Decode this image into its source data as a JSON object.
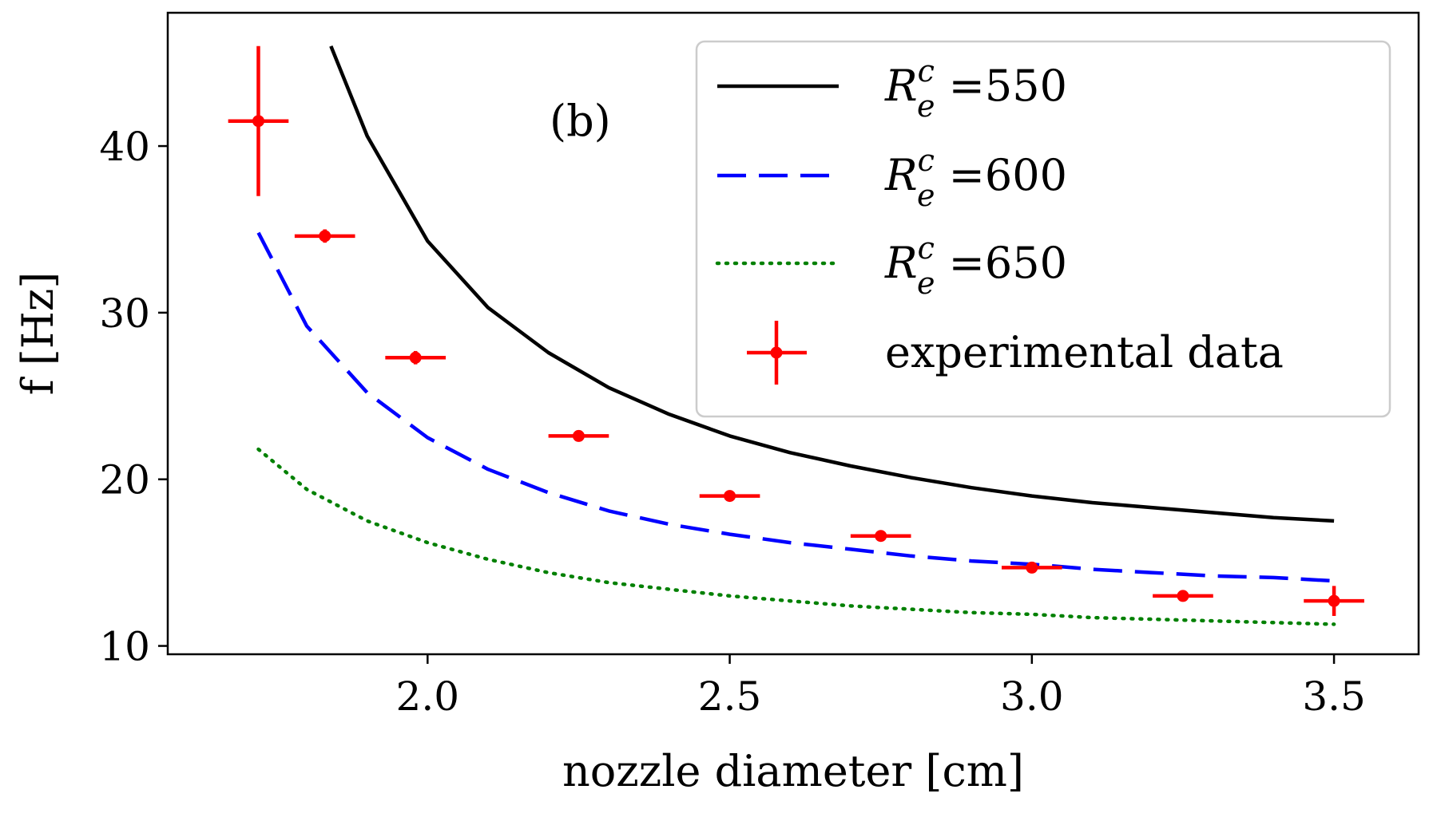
{
  "chart_data": {
    "type": "line",
    "title": "",
    "annotation": "(b)",
    "xlabel": "nozzle diameter [cm]",
    "ylabel": "f [Hz]",
    "xlim": [
      1.57,
      3.64
    ],
    "ylim": [
      9.5,
      48
    ],
    "xticks": [
      2.0,
      2.5,
      3.0,
      3.5
    ],
    "xtick_labels": [
      "2.0",
      "2.5",
      "3.0",
      "3.5"
    ],
    "yticks": [
      10,
      20,
      30,
      40
    ],
    "ytick_labels": [
      "10",
      "20",
      "30",
      "40"
    ],
    "grid": false,
    "legend_position": "top-right",
    "series": [
      {
        "name": "R_e^c =550",
        "legend_sym": "R",
        "legend_sup": "c",
        "legend_sub": "e",
        "legend_rest": " =550",
        "style": "solid",
        "color": "#000000",
        "x": [
          1.84,
          1.9,
          2.0,
          2.1,
          2.2,
          2.3,
          2.4,
          2.5,
          2.6,
          2.7,
          2.8,
          2.9,
          3.0,
          3.1,
          3.2,
          3.3,
          3.4,
          3.5
        ],
        "y": [
          46.0,
          40.6,
          34.3,
          30.3,
          27.6,
          25.5,
          23.9,
          22.6,
          21.6,
          20.8,
          20.1,
          19.5,
          19.0,
          18.6,
          18.3,
          18.0,
          17.7,
          17.5
        ]
      },
      {
        "name": "R_e^c =600",
        "legend_sym": "R",
        "legend_sup": "c",
        "legend_sub": "e",
        "legend_rest": " =600",
        "style": "dashed",
        "color": "#0000ff",
        "x": [
          1.72,
          1.8,
          1.9,
          2.0,
          2.1,
          2.2,
          2.3,
          2.4,
          2.5,
          2.6,
          2.7,
          2.8,
          2.9,
          3.0,
          3.1,
          3.2,
          3.3,
          3.4,
          3.5
        ],
        "y": [
          34.8,
          29.2,
          25.2,
          22.5,
          20.6,
          19.2,
          18.1,
          17.3,
          16.7,
          16.2,
          15.8,
          15.4,
          15.1,
          14.9,
          14.6,
          14.4,
          14.2,
          14.1,
          13.9
        ]
      },
      {
        "name": "R_e^c =650",
        "legend_sym": "R",
        "legend_sup": "c",
        "legend_sub": "e",
        "legend_rest": " =650",
        "style": "dotted",
        "color": "#008000",
        "x": [
          1.72,
          1.8,
          1.9,
          2.0,
          2.1,
          2.2,
          2.3,
          2.4,
          2.5,
          2.6,
          2.7,
          2.8,
          2.9,
          3.0,
          3.1,
          3.2,
          3.3,
          3.4,
          3.5
        ],
        "y": [
          21.8,
          19.4,
          17.5,
          16.2,
          15.2,
          14.4,
          13.8,
          13.4,
          13.0,
          12.7,
          12.4,
          12.2,
          12.0,
          11.9,
          11.7,
          11.6,
          11.5,
          11.4,
          11.3
        ]
      },
      {
        "name": "experimental data",
        "legend_rest": "experimental data",
        "style": "errorbar",
        "color": "#ff0000",
        "points": [
          {
            "x": 1.72,
            "y": 41.5,
            "xerr": 0.05,
            "yerr": 4.5
          },
          {
            "x": 1.83,
            "y": 34.6,
            "xerr": 0.05,
            "yerr": 0.4
          },
          {
            "x": 1.98,
            "y": 27.3,
            "xerr": 0.05,
            "yerr": 0.4
          },
          {
            "x": 2.25,
            "y": 22.6,
            "xerr": 0.05,
            "yerr": 0.2
          },
          {
            "x": 2.5,
            "y": 19.0,
            "xerr": 0.05,
            "yerr": 0.2
          },
          {
            "x": 2.75,
            "y": 16.6,
            "xerr": 0.05,
            "yerr": 0.2
          },
          {
            "x": 3.0,
            "y": 14.7,
            "xerr": 0.05,
            "yerr": 0.2
          },
          {
            "x": 3.25,
            "y": 13.0,
            "xerr": 0.05,
            "yerr": 0.2
          },
          {
            "x": 3.5,
            "y": 12.7,
            "xerr": 0.05,
            "yerr": 0.9
          }
        ]
      }
    ]
  }
}
